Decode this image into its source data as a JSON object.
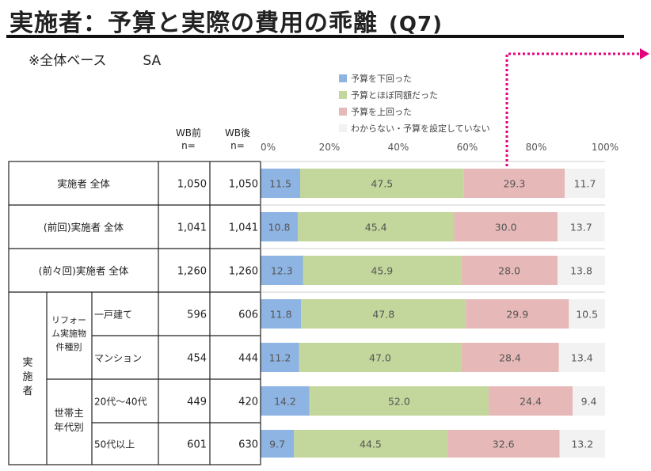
{
  "title": "実施者：予算と実際の費用の乖離",
  "title_q": "(Q7)",
  "subtitle": "※全体ベース",
  "subtitle_sa": "SA",
  "headers": {
    "wb_before": "WB前",
    "wb_after": "WB後",
    "n_label": "n="
  },
  "colors": {
    "below": "#8eb4e3",
    "same": "#c3d69b",
    "above": "#e6b9b8",
    "unknown": "#f2f2f2",
    "accent": "#e6007e"
  },
  "chart_data": {
    "type": "bar",
    "orientation": "horizontal-stacked",
    "xlim": [
      0,
      100
    ],
    "ticks": [
      "0%",
      "20%",
      "40%",
      "60%",
      "80%",
      "100%"
    ],
    "series": [
      {
        "name": "予算を下回った",
        "values": [
          11.5,
          10.8,
          12.3,
          11.8,
          11.2,
          14.2,
          9.7
        ]
      },
      {
        "name": "予算とほぼ同額だった",
        "values": [
          47.5,
          45.4,
          45.9,
          47.8,
          47.0,
          52.0,
          44.5
        ]
      },
      {
        "name": "予算を上回った",
        "values": [
          29.3,
          30.0,
          28.0,
          29.9,
          28.4,
          24.4,
          32.6
        ]
      },
      {
        "name": "わからない・予算を設定していない",
        "values": [
          11.7,
          13.7,
          13.8,
          10.5,
          13.4,
          9.4,
          13.2
        ]
      }
    ],
    "rows": [
      {
        "label": "実施者 全体",
        "n_before": "1,050",
        "n_after": "1,050"
      },
      {
        "label": "(前回)実施者 全体",
        "n_before": "1,041",
        "n_after": "1,041"
      },
      {
        "label": "(前々回)実施者 全体",
        "n_before": "1,260",
        "n_after": "1,260"
      },
      {
        "label": "一戸建て",
        "n_before": "596",
        "n_after": "606"
      },
      {
        "label": "マンション",
        "n_before": "454",
        "n_after": "444"
      },
      {
        "label": "20代～40代",
        "n_before": "449",
        "n_after": "420"
      },
      {
        "label": "50代以上",
        "n_before": "601",
        "n_after": "630"
      }
    ],
    "groups": {
      "outer": "実施者",
      "inner": [
        "リフォーム実施物件種別",
        "世帯主年代別"
      ]
    }
  }
}
